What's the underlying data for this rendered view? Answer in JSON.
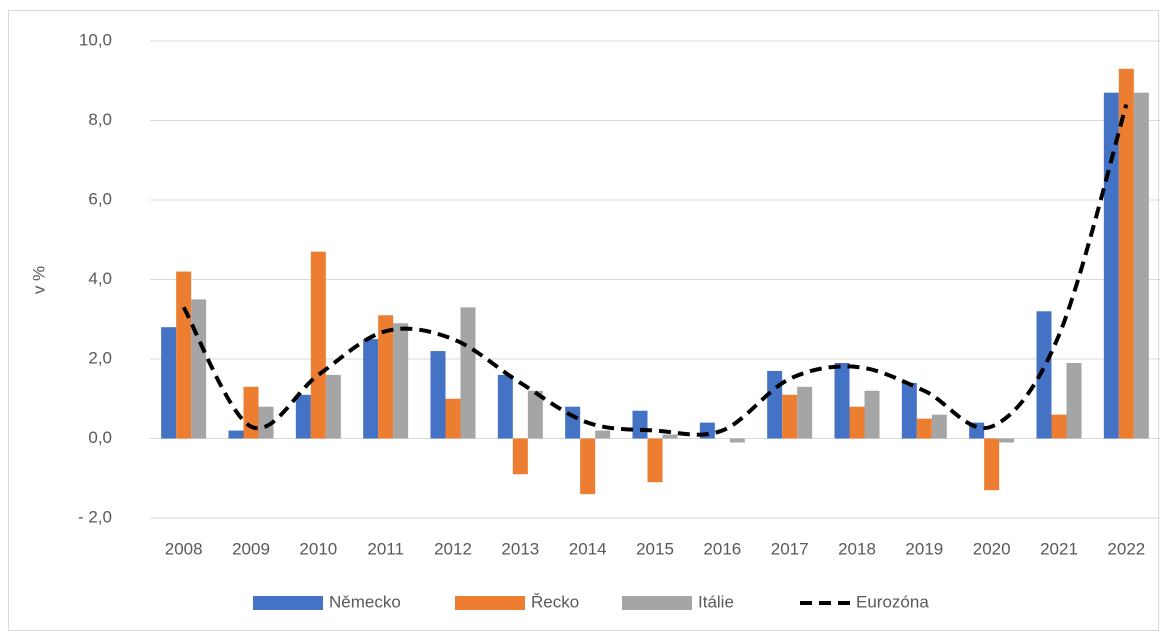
{
  "chart_data": {
    "type": "bar",
    "y_label": "v %",
    "categories": [
      "2008",
      "2009",
      "2010",
      "2011",
      "2012",
      "2013",
      "2014",
      "2015",
      "2016",
      "2017",
      "2018",
      "2019",
      "2020",
      "2021",
      "2022"
    ],
    "series": [
      {
        "name": "Německo",
        "color": "#4472c4",
        "values": [
          2.8,
          0.2,
          1.1,
          2.5,
          2.2,
          1.6,
          0.8,
          0.7,
          0.4,
          1.7,
          1.9,
          1.4,
          0.4,
          3.2,
          8.7
        ]
      },
      {
        "name": "Řecko",
        "color": "#ed7d31",
        "values": [
          4.2,
          1.3,
          4.7,
          3.1,
          1.0,
          -0.9,
          -1.4,
          -1.1,
          0.0,
          1.1,
          0.8,
          0.5,
          -1.3,
          0.6,
          9.3
        ]
      },
      {
        "name": "Itálie",
        "color": "#a5a5a5",
        "values": [
          3.5,
          0.8,
          1.6,
          2.9,
          3.3,
          1.2,
          0.2,
          0.1,
          -0.1,
          1.3,
          1.2,
          0.6,
          -0.1,
          1.9,
          8.7
        ]
      },
      {
        "name": "Eurozóna",
        "color": "#000000",
        "type": "line",
        "dashed": true,
        "smooth": true,
        "values": [
          3.3,
          0.3,
          1.6,
          2.7,
          2.5,
          1.4,
          0.4,
          0.2,
          0.2,
          1.5,
          1.8,
          1.2,
          0.3,
          2.6,
          8.4
        ]
      }
    ],
    "ylim": [
      -2,
      10
    ],
    "yticks": [
      {
        "value": -2,
        "label": "- 2,0"
      },
      {
        "value": 0,
        "label": "0,0"
      },
      {
        "value": 2,
        "label": "2,0"
      },
      {
        "value": 4,
        "label": "4,0"
      },
      {
        "value": 6,
        "label": "6,0"
      },
      {
        "value": 8,
        "label": "8,0"
      },
      {
        "value": 10,
        "label": "10,0"
      }
    ],
    "grid": true,
    "legend": "bottom"
  }
}
